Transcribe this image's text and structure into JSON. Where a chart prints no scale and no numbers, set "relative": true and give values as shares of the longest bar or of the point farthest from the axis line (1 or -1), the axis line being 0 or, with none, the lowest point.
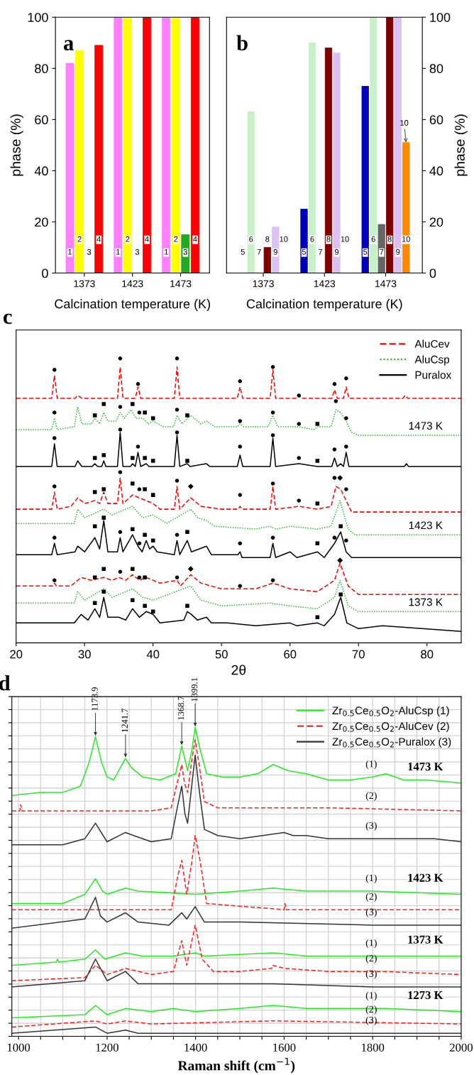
{
  "chart_data": [
    {
      "type": "bar",
      "title": "a",
      "xlabel": "Calcination temperature (K)",
      "ylabel": "phase (%)",
      "categories": [
        "1373",
        "1423",
        "1473"
      ],
      "ylim": [
        0,
        100
      ],
      "yticks": [
        0,
        20,
        40,
        60,
        80,
        100
      ],
      "series": [
        {
          "name": "1",
          "color": "#ff80ff",
          "values": [
            82,
            100,
            100
          ]
        },
        {
          "name": "2",
          "color": "#ffff00",
          "values": [
            87,
            100,
            100
          ]
        },
        {
          "name": "3",
          "color": "#22aa22",
          "values": [
            0,
            0,
            15
          ]
        },
        {
          "name": "4",
          "color": "#ff0000",
          "values": [
            89,
            100,
            100
          ]
        }
      ]
    },
    {
      "type": "bar",
      "title": "b",
      "xlabel": "Calcination temperature (K)",
      "ylabel": "phase (%)",
      "categories": [
        "1373",
        "1423",
        "1473"
      ],
      "ylim": [
        0,
        100
      ],
      "yticks": [
        0,
        20,
        40,
        60,
        80,
        100
      ],
      "series": [
        {
          "name": "5",
          "color": "#0000bb",
          "values": [
            0,
            25,
            73
          ]
        },
        {
          "name": "6",
          "color": "#c8f0c8",
          "values": [
            63,
            90,
            100
          ]
        },
        {
          "name": "7",
          "color": "#666666",
          "values": [
            0,
            0,
            19
          ]
        },
        {
          "name": "8",
          "color": "#800000",
          "values": [
            10,
            88,
            100
          ]
        },
        {
          "name": "9",
          "color": "#dcc0f5",
          "values": [
            18,
            86,
            100
          ]
        },
        {
          "name": "10",
          "color": "#ff8800",
          "values": [
            0,
            0,
            51
          ]
        }
      ],
      "annotations": [
        {
          "text": "10",
          "y": 51
        }
      ]
    },
    {
      "type": "line",
      "title": "c",
      "xlabel": "2θ",
      "relative": true,
      "xlim": [
        20,
        85
      ],
      "xticks": [
        20,
        30,
        40,
        50,
        60,
        70,
        80
      ],
      "legend": "top right",
      "series": [
        {
          "name": "AluCev",
          "color": "#ff0000",
          "line_style": "dashed",
          "x": [
            20,
            25.2,
            25.6,
            26,
            28.6,
            29,
            29.6,
            34.8,
            35.2,
            35.6,
            37.4,
            37.8,
            38.2,
            43.1,
            43.5,
            43.9,
            52.3,
            52.7,
            53.1,
            57.1,
            57.5,
            57.9,
            61,
            61.3,
            61.6,
            66.1,
            66.5,
            66.9,
            67.8,
            68.2,
            68.6,
            76.5,
            76.8,
            77.2,
            85
          ],
          "values": [
            0.86,
            0.86,
            0.94,
            0.86,
            0.86,
            0.87,
            0.86,
            0.86,
            0.97,
            0.86,
            0.86,
            0.9,
            0.86,
            0.86,
            0.97,
            0.86,
            0.86,
            0.9,
            0.86,
            0.86,
            0.96,
            0.86,
            0.86,
            0.87,
            0.86,
            0.86,
            0.89,
            0.86,
            0.86,
            0.9,
            0.86,
            0.86,
            0.87,
            0.86,
            0.86
          ]
        },
        {
          "name": "AluCsp",
          "color": "#33bb33",
          "line_style": "dotted",
          "x": [
            20,
            25.2,
            25.6,
            26,
            28.5,
            29,
            29.6,
            31,
            31.5,
            32.2,
            32.8,
            33.4,
            34.6,
            35.2,
            35.8,
            36.8,
            37.5,
            38.5,
            39.3,
            40,
            41.5,
            43,
            43.5,
            44.2,
            45.5,
            47,
            47.8,
            49,
            52.3,
            52.7,
            53.2,
            56.8,
            57.5,
            58.2,
            60,
            61.3,
            63.5,
            64,
            66,
            66.7,
            67.4,
            68.2,
            69,
            70,
            85
          ],
          "values": [
            0.75,
            0.75,
            0.79,
            0.75,
            0.76,
            0.83,
            0.77,
            0.77,
            0.79,
            0.77,
            0.81,
            0.78,
            0.78,
            0.81,
            0.79,
            0.82,
            0.79,
            0.79,
            0.77,
            0.78,
            0.76,
            0.76,
            0.8,
            0.77,
            0.8,
            0.77,
            0.78,
            0.76,
            0.76,
            0.77,
            0.76,
            0.76,
            0.8,
            0.76,
            0.76,
            0.76,
            0.75,
            0.76,
            0.76,
            0.82,
            0.81,
            0.78,
            0.74,
            0.73,
            0.73
          ]
        },
        {
          "name": "Puralox",
          "color": "#000000",
          "line_style": "solid",
          "x": [
            20,
            25.2,
            25.6,
            26,
            28.6,
            29,
            29.6,
            31.1,
            31.5,
            31.9,
            32.5,
            32.8,
            33.1,
            34.8,
            35.2,
            35.6,
            36.7,
            37,
            37.4,
            37.8,
            38.2,
            39,
            39.4,
            43.1,
            43.5,
            43.9,
            45,
            45.4,
            47.8,
            48.3,
            52.3,
            52.7,
            53.1,
            57.1,
            57.5,
            57.9,
            61.3,
            64,
            66.1,
            66.5,
            66.9,
            67.4,
            67.8,
            68.2,
            68.6,
            76.7,
            77,
            77.3,
            85
          ],
          "values": [
            0.62,
            0.62,
            0.7,
            0.62,
            0.62,
            0.64,
            0.62,
            0.62,
            0.63,
            0.62,
            0.62,
            0.64,
            0.62,
            0.62,
            0.74,
            0.62,
            0.62,
            0.63,
            0.62,
            0.67,
            0.62,
            0.63,
            0.62,
            0.62,
            0.73,
            0.62,
            0.63,
            0.62,
            0.63,
            0.62,
            0.62,
            0.66,
            0.62,
            0.62,
            0.72,
            0.62,
            0.63,
            0.62,
            0.62,
            0.65,
            0.62,
            0.63,
            0.62,
            0.67,
            0.62,
            0.62,
            0.63,
            0.62,
            0.62
          ]
        },
        {
          "color": "#ff0000",
          "line_style": "dashed",
          "x": [
            20,
            25.2,
            25.6,
            26,
            28,
            29,
            30,
            31.5,
            32.2,
            32.8,
            33.4,
            34.8,
            35.2,
            35.6,
            37,
            38,
            39,
            40,
            41,
            43.1,
            43.5,
            43.9,
            45.5,
            47,
            50,
            52.4,
            52.7,
            53,
            57.1,
            57.5,
            57.9,
            61.3,
            64,
            66,
            66.7,
            67.4,
            68.2,
            69,
            70,
            85
          ],
          "values": [
            0.47,
            0.47,
            0.53,
            0.47,
            0.48,
            0.51,
            0.49,
            0.5,
            0.49,
            0.53,
            0.49,
            0.49,
            0.58,
            0.49,
            0.52,
            0.51,
            0.5,
            0.49,
            0.47,
            0.47,
            0.55,
            0.47,
            0.51,
            0.48,
            0.47,
            0.47,
            0.48,
            0.47,
            0.47,
            0.55,
            0.47,
            0.48,
            0.47,
            0.48,
            0.55,
            0.54,
            0.5,
            0.46,
            0.46,
            0.46
          ]
        },
        {
          "color": "#33bb33",
          "line_style": "dotted",
          "x": [
            20,
            28.5,
            29,
            30,
            32.8,
            34,
            37,
            38.5,
            40,
            42,
            45.5,
            46.5,
            47.8,
            49,
            55,
            57,
            58,
            60,
            64,
            66,
            67.3,
            68.5,
            69.5,
            85
          ],
          "values": [
            0.42,
            0.42,
            0.47,
            0.44,
            0.47,
            0.45,
            0.48,
            0.44,
            0.45,
            0.42,
            0.47,
            0.44,
            0.43,
            0.41,
            0.4,
            0.41,
            0.4,
            0.41,
            0.4,
            0.41,
            0.5,
            0.4,
            0.38,
            0.38
          ]
        },
        {
          "color": "#000000",
          "line_style": "solid",
          "x": [
            20,
            25.2,
            25.6,
            26,
            28.6,
            29,
            30,
            31.5,
            32.2,
            32.8,
            33.4,
            34.8,
            35.2,
            35.6,
            37,
            37.8,
            38.4,
            39,
            39.5,
            40,
            40.6,
            43.1,
            43.5,
            43.9,
            45,
            45.6,
            47.8,
            48.5,
            52.4,
            52.7,
            53,
            57.1,
            57.5,
            57.9,
            60,
            61,
            64,
            65,
            66.5,
            67.4,
            68.2,
            69,
            73,
            85
          ],
          "values": [
            0.31,
            0.31,
            0.35,
            0.31,
            0.32,
            0.34,
            0.32,
            0.37,
            0.33,
            0.43,
            0.32,
            0.32,
            0.37,
            0.32,
            0.38,
            0.34,
            0.32,
            0.36,
            0.33,
            0.34,
            0.32,
            0.31,
            0.36,
            0.31,
            0.36,
            0.32,
            0.34,
            0.31,
            0.31,
            0.32,
            0.3,
            0.3,
            0.35,
            0.3,
            0.32,
            0.3,
            0.32,
            0.3,
            0.35,
            0.39,
            0.32,
            0.3,
            0.3,
            0.3
          ]
        },
        {
          "color": "#ff0000",
          "line_style": "dashed",
          "x": [
            20,
            25.3,
            25.6,
            25.9,
            28,
            29.5,
            31,
            32.8,
            34,
            35,
            36,
            37,
            38,
            39,
            41,
            43.5,
            44,
            45.5,
            47,
            50,
            52.7,
            55,
            57.5,
            60,
            64,
            66.5,
            67.3,
            68.5,
            70,
            85
          ],
          "values": [
            0.2,
            0.2,
            0.21,
            0.2,
            0.2,
            0.23,
            0.22,
            0.23,
            0.22,
            0.23,
            0.22,
            0.24,
            0.22,
            0.23,
            0.21,
            0.22,
            0.2,
            0.24,
            0.21,
            0.19,
            0.19,
            0.19,
            0.21,
            0.19,
            0.18,
            0.22,
            0.28,
            0.2,
            0.17,
            0.17
          ]
        },
        {
          "color": "#33bb33",
          "line_style": "dotted",
          "x": [
            20,
            28.5,
            29,
            30,
            32.8,
            34,
            37,
            38.5,
            40,
            45.5,
            47,
            50,
            57,
            60,
            64,
            66.5,
            67.3,
            68.5,
            70,
            85
          ],
          "values": [
            0.14,
            0.14,
            0.18,
            0.15,
            0.19,
            0.16,
            0.19,
            0.16,
            0.15,
            0.2,
            0.15,
            0.13,
            0.14,
            0.13,
            0.12,
            0.16,
            0.22,
            0.13,
            0.11,
            0.11
          ]
        },
        {
          "color": "#000000",
          "line_style": "solid",
          "x": [
            20,
            28.5,
            29.5,
            30.5,
            31.5,
            32.2,
            32.8,
            33.4,
            35,
            36,
            37,
            38,
            39,
            40,
            41,
            44.5,
            45,
            45.6,
            46.5,
            47.8,
            48.5,
            50.8,
            55,
            60,
            61,
            64,
            65,
            66.5,
            67.4,
            68.3,
            70,
            73.5,
            85
          ],
          "values": [
            0.07,
            0.07,
            0.1,
            0.08,
            0.12,
            0.09,
            0.16,
            0.09,
            0.09,
            0.08,
            0.12,
            0.09,
            0.11,
            0.1,
            0.07,
            0.08,
            0.11,
            0.1,
            0.08,
            0.09,
            0.07,
            0.07,
            0.06,
            0.07,
            0.06,
            0.07,
            0.06,
            0.1,
            0.16,
            0.07,
            0.05,
            0.06,
            0.04
          ]
        },
        {
          "type": "scatter",
          "marker": "circle",
          "color": "#000000",
          "x": [
            25.6,
            35.2,
            37.8,
            43.5,
            52.7,
            57.5,
            61.3,
            66.5,
            68.2,
            25.6,
            35.2,
            38,
            43.5,
            52.7,
            57.5,
            61.3,
            66.7,
            68.2,
            25.6,
            35.2,
            37.8,
            43.5,
            52.7,
            57.5,
            61.3,
            66.5,
            68.2,
            25.6,
            35.2,
            38,
            43.5,
            52.7,
            57.5,
            61.3,
            66.5,
            68.2,
            25.6,
            35.2,
            38,
            43.5,
            52.7,
            57.5,
            66.5,
            68.2,
            25.6,
            35.2,
            38,
            43.5,
            52.7,
            57.5
          ],
          "values": [
            0.96,
            1.0,
            0.91,
            1.0,
            0.92,
            0.97,
            0.87,
            0.91,
            0.93,
            0.81,
            0.83,
            0.81,
            0.82,
            0.78,
            0.81,
            0.77,
            0.85,
            0.79,
            0.72,
            0.75,
            0.69,
            0.74,
            0.69,
            0.73,
            0.65,
            0.68,
            0.69,
            0.55,
            0.6,
            0.54,
            0.57,
            0.52,
            0.56,
            0.5,
            0.58,
            0.54,
            0.37,
            0.39,
            0.35,
            0.38,
            0.35,
            0.37,
            0.37,
            0.36,
            0.22,
            0.25,
            0.23,
            0.23,
            0.2,
            0.22
          ]
        },
        {
          "type": "scatter",
          "marker": "square",
          "color": "#000000",
          "x": [
            31.5,
            32.8,
            37,
            38.8,
            40,
            45,
            64,
            31.5,
            32.8,
            37,
            38.8,
            40,
            45,
            64,
            31.5,
            32.8,
            37,
            38.8,
            40,
            64,
            31.5,
            32.8,
            37,
            38.8,
            40,
            45,
            64,
            67.4,
            31.5,
            32.8,
            37,
            38.8,
            31.5,
            32.8,
            37,
            38.8,
            40,
            45,
            64,
            67.4
          ],
          "values": [
            0.8,
            0.84,
            0.84,
            0.81,
            0.79,
            0.8,
            0.77,
            0.65,
            0.66,
            0.65,
            0.65,
            0.64,
            0.64,
            0.64,
            0.53,
            0.54,
            0.56,
            0.54,
            0.52,
            0.49,
            0.41,
            0.44,
            0.4,
            0.38,
            0.36,
            0.39,
            0.35,
            0.41,
            0.23,
            0.26,
            0.26,
            0.23,
            0.14,
            0.18,
            0.15,
            0.13,
            0.11,
            0.13,
            0.09,
            0.17
          ]
        },
        {
          "type": "scatter",
          "marker": "diamond",
          "color": "#000000",
          "x": [
            45.5,
            67.3,
            45.5,
            67.3
          ],
          "values": [
            0.55,
            0.58,
            0.26,
            0.29
          ]
        }
      ],
      "annotations": [
        "1473 K",
        "1423 K",
        "1373 K"
      ]
    },
    {
      "type": "line",
      "title": "d",
      "xlabel": "Raman shift (cm$^{−1}$)",
      "relative": true,
      "xlim": [
        985,
        2000
      ],
      "grid": true,
      "legend": "top right",
      "xticks": [
        1000,
        {
          "value": 1050,
          "label": null
        },
        {
          "value": 1100,
          "label": null
        },
        {
          "value": 1150,
          "label": null
        },
        1200,
        {
          "value": 1250,
          "label": null
        },
        {
          "value": 1300,
          "label": null
        },
        {
          "value": 1350,
          "label": null
        },
        1400,
        {
          "value": 1450,
          "label": null
        },
        {
          "value": 1500,
          "label": null
        },
        {
          "value": 1550,
          "label": null
        },
        1600,
        {
          "value": 1650,
          "label": null
        },
        {
          "value": 1700,
          "label": null
        },
        {
          "value": 1750,
          "label": null
        },
        1800,
        {
          "value": 1850,
          "label": null
        },
        {
          "value": 1900,
          "label": null
        },
        {
          "value": 1950,
          "label": null
        },
        2000
      ],
      "series": [
        {
          "name": "Zr$_{0.5}$Ce$_{0.5}$O$_{2}$-AluCsp (1)",
          "color": "#22ee22",
          "line_style": "solid",
          "x": [
            985,
            1050,
            1100,
            1140,
            1160,
            1173.9,
            1187,
            1200,
            1215,
            1230,
            1241.7,
            1255,
            1280,
            1320,
            1355,
            1368.7,
            1382,
            1392,
            1399.1,
            1410,
            1425,
            1460,
            1500,
            1540,
            1575,
            1610,
            1650,
            1700,
            1750,
            1800,
            1830,
            1870,
            1920,
            2000
          ],
          "values": [
            0.78,
            0.79,
            0.79,
            0.81,
            0.89,
            0.97,
            0.89,
            0.84,
            0.83,
            0.87,
            0.9,
            0.87,
            0.84,
            0.83,
            0.85,
            0.94,
            0.86,
            0.93,
            1.0,
            0.93,
            0.85,
            0.84,
            0.84,
            0.85,
            0.88,
            0.86,
            0.85,
            0.83,
            0.83,
            0.84,
            0.85,
            0.83,
            0.83,
            0.82
          ]
        },
        {
          "name": "Zr$_{0.5}$Ce$_{0.5}$O$_{2}$-AluCev (2)",
          "color": "#ff2020",
          "line_style": "dashed",
          "x": [
            985,
            1003,
            1005,
            1008,
            1100,
            1200,
            1300,
            1345,
            1360,
            1368.7,
            1375,
            1382,
            1392,
            1399.1,
            1408,
            1420,
            1450,
            1575,
            1700,
            2000
          ],
          "values": [
            0.73,
            0.73,
            0.75,
            0.73,
            0.73,
            0.73,
            0.73,
            0.74,
            0.83,
            0.88,
            0.82,
            0.79,
            0.9,
            0.96,
            0.88,
            0.76,
            0.74,
            0.74,
            0.74,
            0.73
          ]
        },
        {
          "name": "Zr$_{0.5}$Ce$_{0.5}$O$_{2}$-Puralox (3)",
          "color": "#333333",
          "line_style": "solid",
          "x": [
            985,
            1020,
            1100,
            1150,
            1173.9,
            1200,
            1241.7,
            1260,
            1300,
            1345,
            1360,
            1368.7,
            1376,
            1382,
            1392,
            1399.1,
            1408,
            1420,
            1450,
            1500,
            1600,
            1620,
            1650,
            1700,
            1800,
            1940,
            2000
          ],
          "values": [
            0.62,
            0.62,
            0.62,
            0.64,
            0.69,
            0.63,
            0.66,
            0.65,
            0.63,
            0.64,
            0.75,
            0.81,
            0.72,
            0.69,
            0.82,
            0.91,
            0.8,
            0.67,
            0.65,
            0.64,
            0.66,
            0.65,
            0.65,
            0.64,
            0.64,
            0.64,
            0.63
          ]
        },
        {
          "color": "#22ee22",
          "line_style": "solid",
          "x": [
            985,
            1100,
            1150,
            1173.9,
            1190,
            1200,
            1241.7,
            1270,
            1400,
            1500,
            1575,
            1650,
            1800,
            2000
          ],
          "values": [
            0.43,
            0.43,
            0.46,
            0.51,
            0.47,
            0.46,
            0.48,
            0.47,
            0.46,
            0.47,
            0.48,
            0.47,
            0.47,
            0.46
          ]
        },
        {
          "color": "#ff2020",
          "line_style": "dashed",
          "x": [
            985,
            1345,
            1360,
            1368.7,
            1380,
            1392,
            1399.1,
            1410,
            1425,
            1600,
            1602,
            1605,
            2000
          ],
          "values": [
            0.41,
            0.41,
            0.52,
            0.57,
            0.46,
            0.57,
            0.65,
            0.57,
            0.43,
            0.41,
            0.43,
            0.41,
            0.41
          ]
        },
        {
          "color": "#333333",
          "line_style": "solid",
          "x": [
            985,
            1150,
            1173.9,
            1185,
            1200,
            1241.7,
            1270,
            1340,
            1368.7,
            1380,
            1399.1,
            1420,
            1500,
            1800,
            2000
          ],
          "values": [
            0.35,
            0.38,
            0.45,
            0.39,
            0.37,
            0.4,
            0.37,
            0.36,
            0.4,
            0.38,
            0.42,
            0.37,
            0.37,
            0.36,
            0.36
          ]
        },
        {
          "color": "#22ee22",
          "line_style": "solid",
          "x": [
            985,
            1085,
            1088,
            1091,
            1150,
            1173.9,
            1195,
            1241.7,
            1280,
            1350,
            1400,
            1420,
            1575,
            1650,
            1830,
            2000
          ],
          "values": [
            0.23,
            0.24,
            0.25,
            0.24,
            0.25,
            0.28,
            0.25,
            0.27,
            0.26,
            0.26,
            0.27,
            0.26,
            0.27,
            0.26,
            0.26,
            0.26
          ]
        },
        {
          "color": "#ff2020",
          "line_style": "dashed",
          "x": [
            985,
            1150,
            1173.9,
            1200,
            1241.7,
            1300,
            1350,
            1368.7,
            1380,
            1399.1,
            1415,
            1440,
            1500,
            1572,
            1574,
            1600,
            1700,
            1820,
            2000
          ],
          "values": [
            0.18,
            0.19,
            0.23,
            0.2,
            0.22,
            0.2,
            0.21,
            0.31,
            0.23,
            0.36,
            0.25,
            0.21,
            0.21,
            0.22,
            0.23,
            0.22,
            0.21,
            0.21,
            0.2
          ]
        },
        {
          "color": "#333333",
          "line_style": "solid",
          "x": [
            985,
            1150,
            1173.9,
            1200,
            1241.7,
            1270,
            1400,
            1575,
            1800,
            2000
          ],
          "values": [
            0.16,
            0.18,
            0.25,
            0.18,
            0.21,
            0.17,
            0.17,
            0.17,
            0.16,
            0.16
          ]
        },
        {
          "color": "#22ee22",
          "line_style": "solid",
          "x": [
            985,
            1150,
            1173.9,
            1200,
            1241.7,
            1300,
            1350,
            1400,
            1500,
            1575,
            1650,
            1800,
            1830,
            2000
          ],
          "values": [
            0.06,
            0.07,
            0.1,
            0.07,
            0.09,
            0.08,
            0.09,
            0.08,
            0.09,
            0.1,
            0.09,
            0.09,
            0.09,
            0.08
          ]
        },
        {
          "color": "#ff2020",
          "line_style": "dashed",
          "x": [
            985,
            1173.9,
            1200,
            1241.7,
            1300,
            1575,
            2000
          ],
          "values": [
            0.03,
            0.05,
            0.04,
            0.05,
            0.04,
            0.05,
            0.04
          ]
        },
        {
          "color": "#333333",
          "line_style": "solid",
          "x": [
            985,
            1173.9,
            1200,
            1241.7,
            1270,
            2000
          ],
          "values": [
            0.01,
            0.03,
            0.01,
            0.02,
            0.01,
            0.01
          ]
        }
      ],
      "annotations": [
        {
          "text": "1173.9",
          "x": 1173.9,
          "y": 0.97
        },
        {
          "text": "1241.7",
          "x": 1241.7,
          "y": 0.9
        },
        {
          "text": "1368.7",
          "x": 1368.7,
          "y": 0.94
        },
        {
          "text": "1399.1",
          "x": 1399.1,
          "y": 1.0
        },
        "1473 K",
        "1423 K",
        "1373 K",
        "1273 K",
        "(1)",
        "(2)",
        "(3)",
        "(1)",
        "(2)",
        "(3)",
        "(1)",
        "(2)",
        "(3)",
        "(1)",
        "(2)",
        "(3)"
      ]
    }
  ]
}
